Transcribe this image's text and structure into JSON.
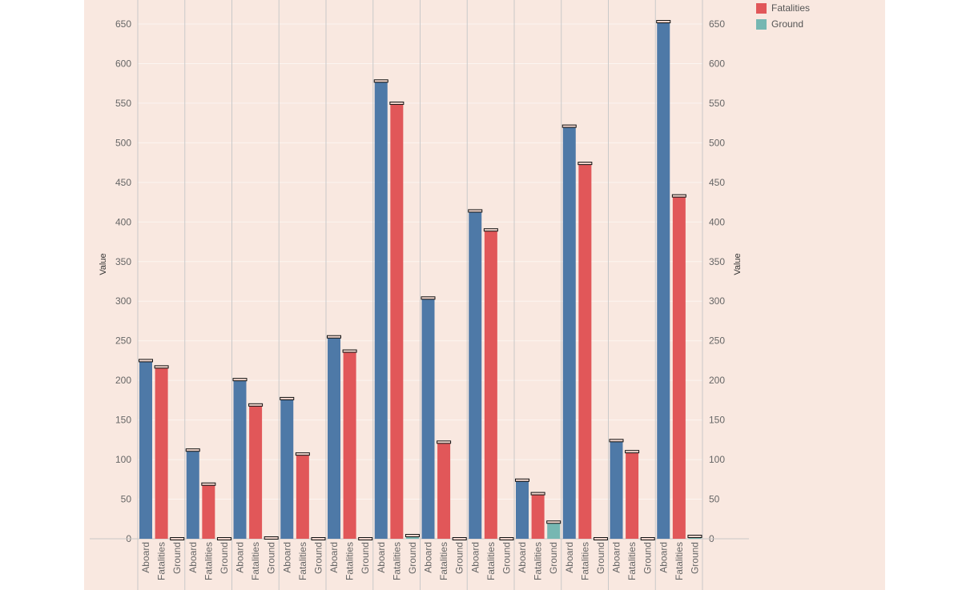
{
  "legend": {
    "items": [
      {
        "label": "Fatalities",
        "color": "#e15759"
      },
      {
        "label": "Ground",
        "color": "#76b7b2"
      }
    ]
  },
  "colors": {
    "Aboard": "#4e79a7",
    "Fatalities": "#e15759",
    "Ground": "#76b7b2",
    "background": "#f9e8e0"
  },
  "chart_data": {
    "type": "bar",
    "ylabel": "Value",
    "ylabel_right": "Value",
    "ylim": [
      0,
      660
    ],
    "yticks": [
      0,
      50,
      100,
      150,
      200,
      250,
      300,
      350,
      400,
      450,
      500,
      550,
      600,
      650
    ],
    "measures": [
      "Aboard",
      "Fatalities",
      "Ground"
    ],
    "groups": [
      {
        "values": [
          225,
          217,
          0
        ]
      },
      {
        "values": [
          112,
          69,
          0
        ]
      },
      {
        "values": [
          201,
          169,
          1
        ]
      },
      {
        "values": [
          177,
          107,
          0
        ]
      },
      {
        "values": [
          255,
          237,
          0
        ]
      },
      {
        "values": [
          578,
          550,
          4
        ]
      },
      {
        "values": [
          304,
          122,
          0
        ]
      },
      {
        "values": [
          414,
          390,
          0
        ]
      },
      {
        "values": [
          74,
          57,
          21
        ]
      },
      {
        "values": [
          521,
          474,
          0
        ]
      },
      {
        "values": [
          124,
          110,
          0
        ]
      },
      {
        "values": [
          653,
          433,
          3
        ]
      }
    ],
    "grid": true,
    "legend_position": "top-right"
  }
}
